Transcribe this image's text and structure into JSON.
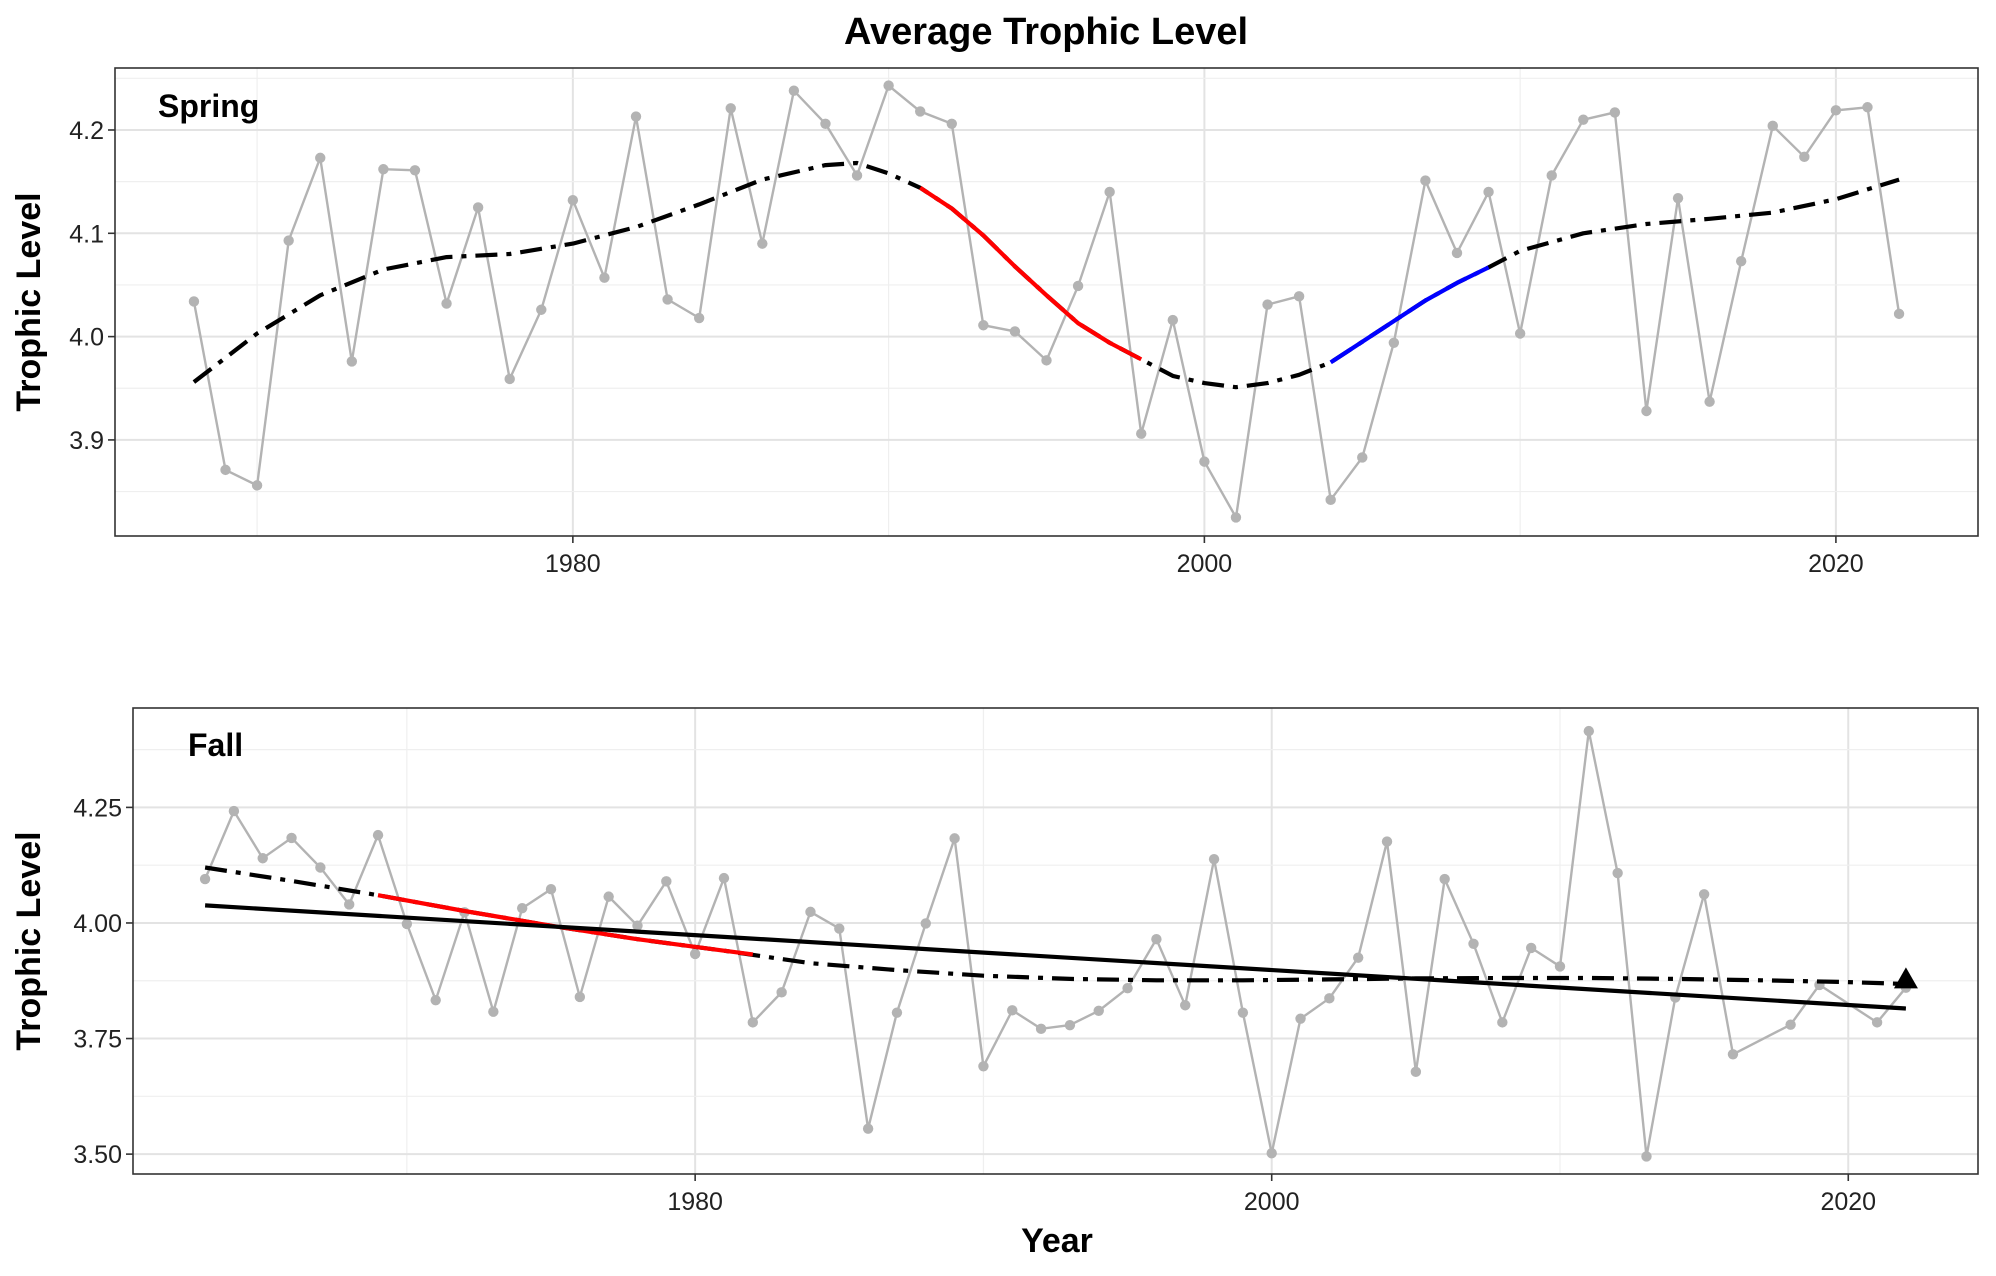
{
  "title": "Average Trophic Level",
  "xlabel": "Year",
  "colors": {
    "observed": "#b3b3b3",
    "trend": "#000000",
    "decrease": "#ff0000",
    "increase": "#0000ff"
  },
  "chart_data": [
    {
      "type": "line",
      "panel": "Spring",
      "ylabel": "Trophic Level",
      "xlim": [
        1965.5,
        2024.5
      ],
      "ylim": [
        3.807,
        4.26
      ],
      "xticks": [
        1980,
        2000,
        2020
      ],
      "xtick_labels": [
        "1980",
        "2000",
        "2020"
      ],
      "yticks": [
        3.9,
        4.0,
        4.1,
        4.2
      ],
      "ytick_labels": [
        "3.9",
        "4.0",
        "4.1",
        "4.2"
      ],
      "grid": true,
      "series": [
        {
          "name": "",
          "style": "observed",
          "x": [
            1968,
            1969,
            1970,
            1971,
            1972,
            1973,
            1974,
            1975,
            1976,
            1977,
            1978,
            1979,
            1980,
            1981,
            1982,
            1983,
            1984,
            1985,
            1986,
            1987,
            1988,
            1989,
            1990,
            1991,
            1992,
            1993,
            1994,
            1995,
            1996,
            1997,
            1998,
            1999,
            2000,
            2001,
            2002,
            2003,
            2004,
            2005,
            2006,
            2007,
            2008,
            2009,
            2010,
            2011,
            2012,
            2013,
            2014,
            2015,
            2016,
            2017,
            2018,
            2019,
            2020,
            2021,
            2022
          ],
          "y": [
            4.034,
            3.871,
            3.856,
            4.093,
            4.173,
            3.976,
            4.162,
            4.161,
            4.032,
            4.125,
            3.959,
            4.026,
            4.132,
            4.057,
            4.213,
            4.036,
            4.018,
            4.221,
            4.09,
            4.238,
            4.206,
            4.156,
            4.243,
            4.218,
            4.206,
            4.011,
            4.005,
            3.977,
            4.049,
            4.14,
            3.906,
            4.016,
            3.879,
            3.825,
            4.031,
            4.039,
            3.842,
            3.883,
            3.994,
            4.151,
            4.081,
            4.14,
            4.003,
            4.156,
            4.21,
            4.217,
            3.928,
            4.134,
            3.937,
            4.073,
            4.204,
            4.174,
            4.219,
            4.222,
            4.022
          ]
        },
        {
          "name": "",
          "style": "trend-dashdot",
          "x": [
            1968,
            1970,
            1972,
            1974,
            1976,
            1978,
            1980,
            1982,
            1984,
            1986,
            1988,
            1989,
            1990,
            1991,
            1992,
            1993,
            1994,
            1995,
            1996,
            1997,
            1998,
            1999,
            2000,
            2001,
            2002,
            2003,
            2004,
            2005,
            2006,
            2007,
            2008,
            2009,
            2010,
            2012,
            2014,
            2016,
            2018,
            2020,
            2022
          ],
          "y": [
            3.956,
            4.003,
            4.04,
            4.065,
            4.077,
            4.08,
            4.09,
            4.106,
            4.128,
            4.152,
            4.166,
            4.168,
            4.158,
            4.144,
            4.124,
            4.098,
            4.068,
            4.04,
            4.013,
            3.994,
            3.978,
            3.962,
            3.955,
            3.951,
            3.955,
            3.963,
            3.975,
            3.995,
            4.015,
            4.035,
            4.052,
            4.067,
            4.083,
            4.1,
            4.109,
            4.114,
            4.12,
            4.133,
            4.152
          ]
        },
        {
          "name": "",
          "style": "trend-decrease",
          "x": [
            1991,
            1992,
            1993,
            1994,
            1995,
            1996,
            1997,
            1998
          ],
          "y": [
            4.144,
            4.124,
            4.098,
            4.068,
            4.04,
            4.013,
            3.994,
            3.978
          ]
        },
        {
          "name": "",
          "style": "trend-increase",
          "x": [
            2004,
            2005,
            2006,
            2007,
            2008,
            2009
          ],
          "y": [
            3.975,
            3.995,
            4.015,
            4.035,
            4.052,
            4.067
          ]
        }
      ]
    },
    {
      "type": "line",
      "panel": "Fall",
      "ylabel": "Trophic Level",
      "xlim": [
        1960.5,
        2024.5
      ],
      "ylim": [
        3.457,
        4.465
      ],
      "xticks": [
        1980,
        2000,
        2020
      ],
      "xtick_labels": [
        "1980",
        "2000",
        "2020"
      ],
      "yticks": [
        3.5,
        3.75,
        4.0,
        4.25
      ],
      "ytick_labels": [
        "3.50",
        "3.75",
        "4.00",
        "4.25"
      ],
      "grid": true,
      "series": [
        {
          "name": "",
          "style": "observed",
          "x": [
            1963,
            1964,
            1965,
            1966,
            1967,
            1968,
            1969,
            1970,
            1971,
            1972,
            1973,
            1974,
            1975,
            1976,
            1977,
            1978,
            1979,
            1980,
            1981,
            1982,
            1983,
            1984,
            1985,
            1986,
            1987,
            1988,
            1989,
            1990,
            1991,
            1992,
            1993,
            1994,
            1995,
            1996,
            1997,
            1998,
            1999,
            2000,
            2001,
            2002,
            2003,
            2004,
            2005,
            2006,
            2007,
            2008,
            2009,
            2010,
            2011,
            2012,
            2013,
            2014,
            2015,
            2016,
            2018,
            2019,
            2021,
            2022
          ],
          "y": [
            4.095,
            4.242,
            4.14,
            4.184,
            4.12,
            4.04,
            4.19,
            3.998,
            3.833,
            4.023,
            3.808,
            4.032,
            4.073,
            3.84,
            4.057,
            3.994,
            4.09,
            3.933,
            4.097,
            3.785,
            3.85,
            4.024,
            3.988,
            3.555,
            3.806,
            3.999,
            4.183,
            3.69,
            3.811,
            3.771,
            3.779,
            3.81,
            3.859,
            3.965,
            3.822,
            4.138,
            3.806,
            3.502,
            3.793,
            3.837,
            3.925,
            4.176,
            3.678,
            4.095,
            3.955,
            3.785,
            3.946,
            3.906,
            4.415,
            4.108,
            3.495,
            3.839,
            4.062,
            3.716,
            3.78,
            3.866,
            3.785,
            3.86
          ]
        },
        {
          "name": "",
          "style": "trend-dashdot",
          "x": [
            1963,
            1966,
            1969,
            1972,
            1975,
            1978,
            1981,
            1984,
            1987,
            1990,
            1993,
            1996,
            1999,
            2002,
            2005,
            2008,
            2011,
            2014,
            2017,
            2020,
            2022
          ],
          "y": [
            4.12,
            4.091,
            4.06,
            4.026,
            3.994,
            3.965,
            3.94,
            3.913,
            3.898,
            3.886,
            3.879,
            3.876,
            3.876,
            3.878,
            3.88,
            3.881,
            3.881,
            3.879,
            3.876,
            3.872,
            3.868
          ]
        },
        {
          "name": "",
          "style": "trend-decrease",
          "x": [
            1969,
            1972,
            1975,
            1978,
            1981,
            1982
          ],
          "y": [
            4.06,
            4.026,
            3.994,
            3.965,
            3.94,
            3.932
          ]
        },
        {
          "name": "",
          "style": "trend-linear",
          "x": [
            1963,
            2022
          ],
          "y": [
            4.038,
            3.815
          ]
        }
      ],
      "annotations": [
        {
          "type": "triangle",
          "x": 2022,
          "y": 3.878
        }
      ]
    }
  ]
}
